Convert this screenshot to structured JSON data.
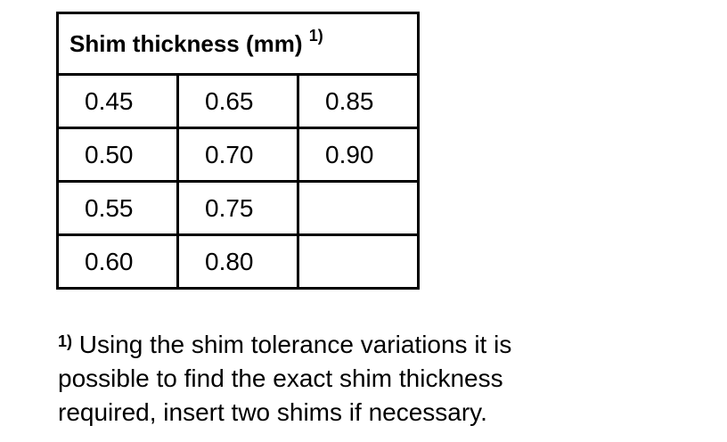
{
  "header": {
    "title": "Shim thickness (mm)",
    "footnote_mark": "1)"
  },
  "table": {
    "rows": [
      [
        "0.45",
        "0.65",
        "0.85"
      ],
      [
        "0.50",
        "0.70",
        "0.90"
      ],
      [
        "0.55",
        "0.75",
        null
      ],
      [
        "0.60",
        "0.80",
        null
      ]
    ]
  },
  "footnote": {
    "mark": "1)",
    "lines": [
      "Using the shim tolerance variations it is",
      "possible to find the exact shim thickness",
      "required, insert two shims if necessary."
    ]
  }
}
